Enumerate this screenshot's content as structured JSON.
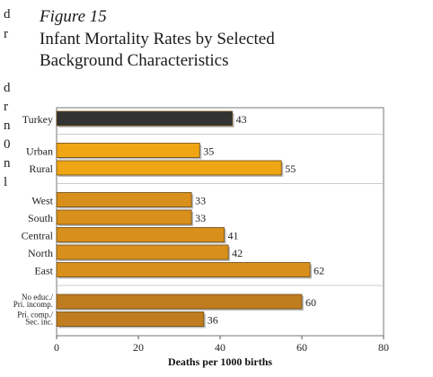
{
  "figure": {
    "label": "Figure 15",
    "title_line1": "Infant Mortality Rates by Selected",
    "title_line2": "Background Characteristics"
  },
  "margin_text": [
    "d",
    "r",
    "d",
    "r",
    "n",
    "0",
    "n",
    "l"
  ],
  "colors": {
    "total_bar": "#333333",
    "residence_bar": "#f0a515",
    "region_bar": "#d98f1c",
    "education_bar": "#c07d1f",
    "frame": "#777777"
  },
  "chart_data": {
    "type": "bar",
    "orientation": "horizontal",
    "title": "Infant Mortality Rates by Selected Background Characteristics",
    "xlabel": "Deaths per 1000 births",
    "ylabel": "",
    "xlim": [
      0,
      80
    ],
    "xticks": [
      0,
      20,
      40,
      60,
      80
    ],
    "grid": false,
    "groups": [
      {
        "bars": [
          {
            "label": "Turkey",
            "value": 43
          }
        ],
        "color": "#333333"
      },
      {
        "bars": [
          {
            "label": "Urban",
            "value": 35
          },
          {
            "label": "Rural",
            "value": 55
          }
        ],
        "color": "#f0a515"
      },
      {
        "bars": [
          {
            "label": "West",
            "value": 33
          },
          {
            "label": "South",
            "value": 33
          },
          {
            "label": "Central",
            "value": 41
          },
          {
            "label": "North",
            "value": 42
          },
          {
            "label": "East",
            "value": 62
          }
        ],
        "color": "#d98f1c"
      },
      {
        "bars": [
          {
            "label": [
              "No educ./",
              "Pri. incomp."
            ],
            "value": 60
          },
          {
            "label": [
              "Pri. comp./",
              "Sec. inc."
            ],
            "value": 36
          }
        ],
        "color": "#c07d1f"
      }
    ]
  }
}
